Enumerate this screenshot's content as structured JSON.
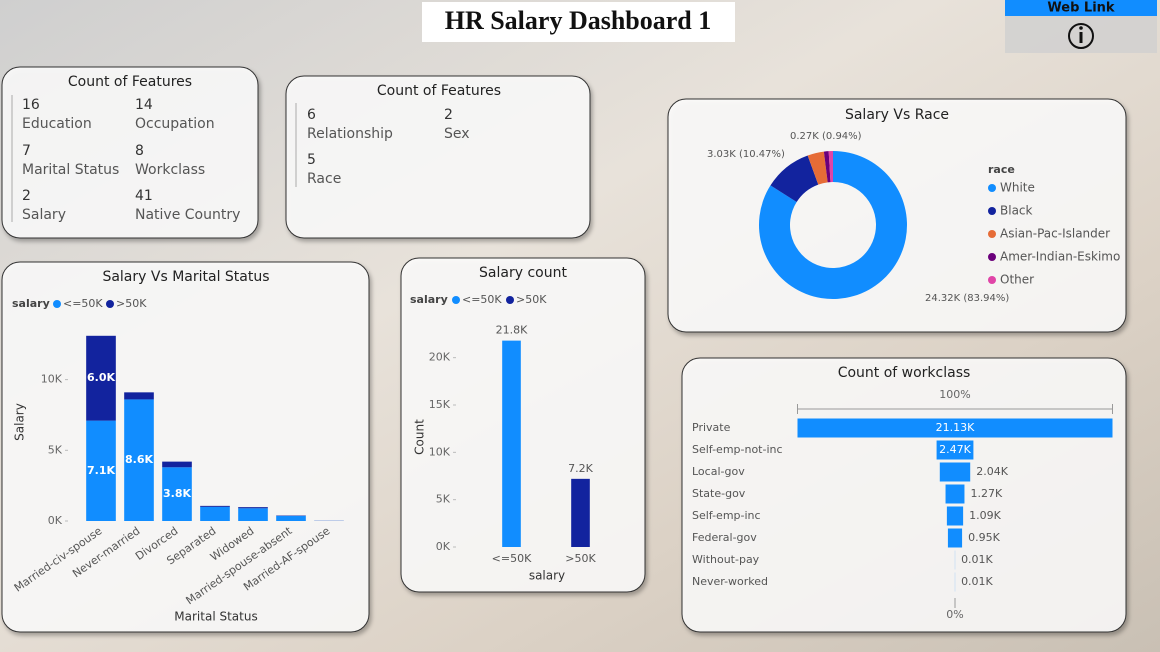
{
  "header": {
    "title": "HR Salary Dashboard 1",
    "link": "Web Link"
  },
  "cards": [
    {
      "title": "Count of Features",
      "items": [
        {
          "value": 16,
          "label": "Education"
        },
        {
          "value": 14,
          "label": "Occupation"
        },
        {
          "value": 7,
          "label": "Marital Status"
        },
        {
          "value": 8,
          "label": "Workclass"
        },
        {
          "value": 2,
          "label": "Salary"
        },
        {
          "value": 41,
          "label": "Native Country"
        }
      ]
    },
    {
      "title": "Count of Features",
      "items": [
        {
          "value": 6,
          "label": "Relationship"
        },
        {
          "value": 2,
          "label": "Sex"
        },
        {
          "value": 5,
          "label": "Race"
        }
      ]
    }
  ],
  "chart_data": [
    {
      "type": "bar",
      "stacked": true,
      "title": "Salary Vs Marital Status",
      "x_label": "Marital Status",
      "y_label": "Salary",
      "legend_title": "salary",
      "categories": [
        "Married-civ-spouse",
        "Never-married",
        "Divorced",
        "Separated",
        "Widowed",
        "Married-spouse-absent",
        "Married-AF-spouse"
      ],
      "series": [
        {
          "name": "<=50K",
          "color": "#118DFF",
          "values": [
            7100,
            8600,
            3800,
            1000,
            900,
            360,
            10
          ],
          "value_labels": [
            "7.1K",
            "8.6K",
            "3.8K",
            null,
            null,
            null,
            null
          ]
        },
        {
          "name": ">50K",
          "color": "#12239E",
          "values": [
            6000,
            500,
            400,
            70,
            80,
            30,
            10
          ],
          "value_labels": [
            "6.0K",
            null,
            null,
            null,
            null,
            null,
            null
          ]
        }
      ],
      "ylim": [
        0,
        14500
      ],
      "yticks": [
        {
          "value": 0,
          "label": "0K"
        },
        {
          "value": 5000,
          "label": "5K"
        },
        {
          "value": 10000,
          "label": "10K"
        }
      ]
    },
    {
      "type": "bar",
      "stacked": false,
      "title": "Salary count",
      "x_label": "salary",
      "y_label": "Count",
      "legend_title": "salary",
      "categories": [
        "<=50K",
        ">50K"
      ],
      "series": [
        {
          "name": "<=50K",
          "color": "#118DFF",
          "values": [
            21800,
            null
          ],
          "value_labels": [
            "21.8K",
            null
          ]
        },
        {
          "name": ">50K",
          "color": "#12239E",
          "values": [
            null,
            7200
          ],
          "value_labels": [
            null,
            "7.2K"
          ]
        }
      ],
      "ylim": [
        0,
        22500
      ],
      "yticks": [
        {
          "value": 0,
          "label": "0K"
        },
        {
          "value": 5000,
          "label": "5K"
        },
        {
          "value": 10000,
          "label": "10K"
        },
        {
          "value": 15000,
          "label": "15K"
        },
        {
          "value": 20000,
          "label": "20K"
        }
      ]
    },
    {
      "type": "donut",
      "title": "Salary Vs Race",
      "legend_title": "race",
      "categories": [
        "White",
        "Black",
        "Asian-Pac-Islander",
        "Amer-Indian-Eskimo",
        "Other"
      ],
      "values": [
        24320,
        3030,
        1040,
        300,
        270
      ],
      "value_labels": [
        "24.32K (83.94%)",
        "3.03K (10.47%)",
        null,
        null,
        "0.27K (0.94%)"
      ],
      "colors": [
        "#118DFF",
        "#12239E",
        "#E66C37",
        "#6B007B",
        "#E044A7"
      ]
    },
    {
      "type": "funnel",
      "title": "Count of workclass",
      "categories": [
        "Private",
        "Self-emp-not-inc",
        "Local-gov",
        "State-gov",
        "Self-emp-inc",
        "Federal-gov",
        "Without-pay",
        "Never-worked"
      ],
      "values": [
        21130,
        2470,
        2040,
        1270,
        1090,
        950,
        10,
        10
      ],
      "value_labels": [
        "21.13K",
        "2.47K",
        "2.04K",
        "1.27K",
        "1.09K",
        "0.95K",
        "0.01K",
        "0.01K"
      ],
      "color": "#118DFF",
      "first_percent": {
        "value": 100,
        "label": "100%"
      },
      "last_percent": {
        "value": 0,
        "label": "0%"
      }
    }
  ]
}
